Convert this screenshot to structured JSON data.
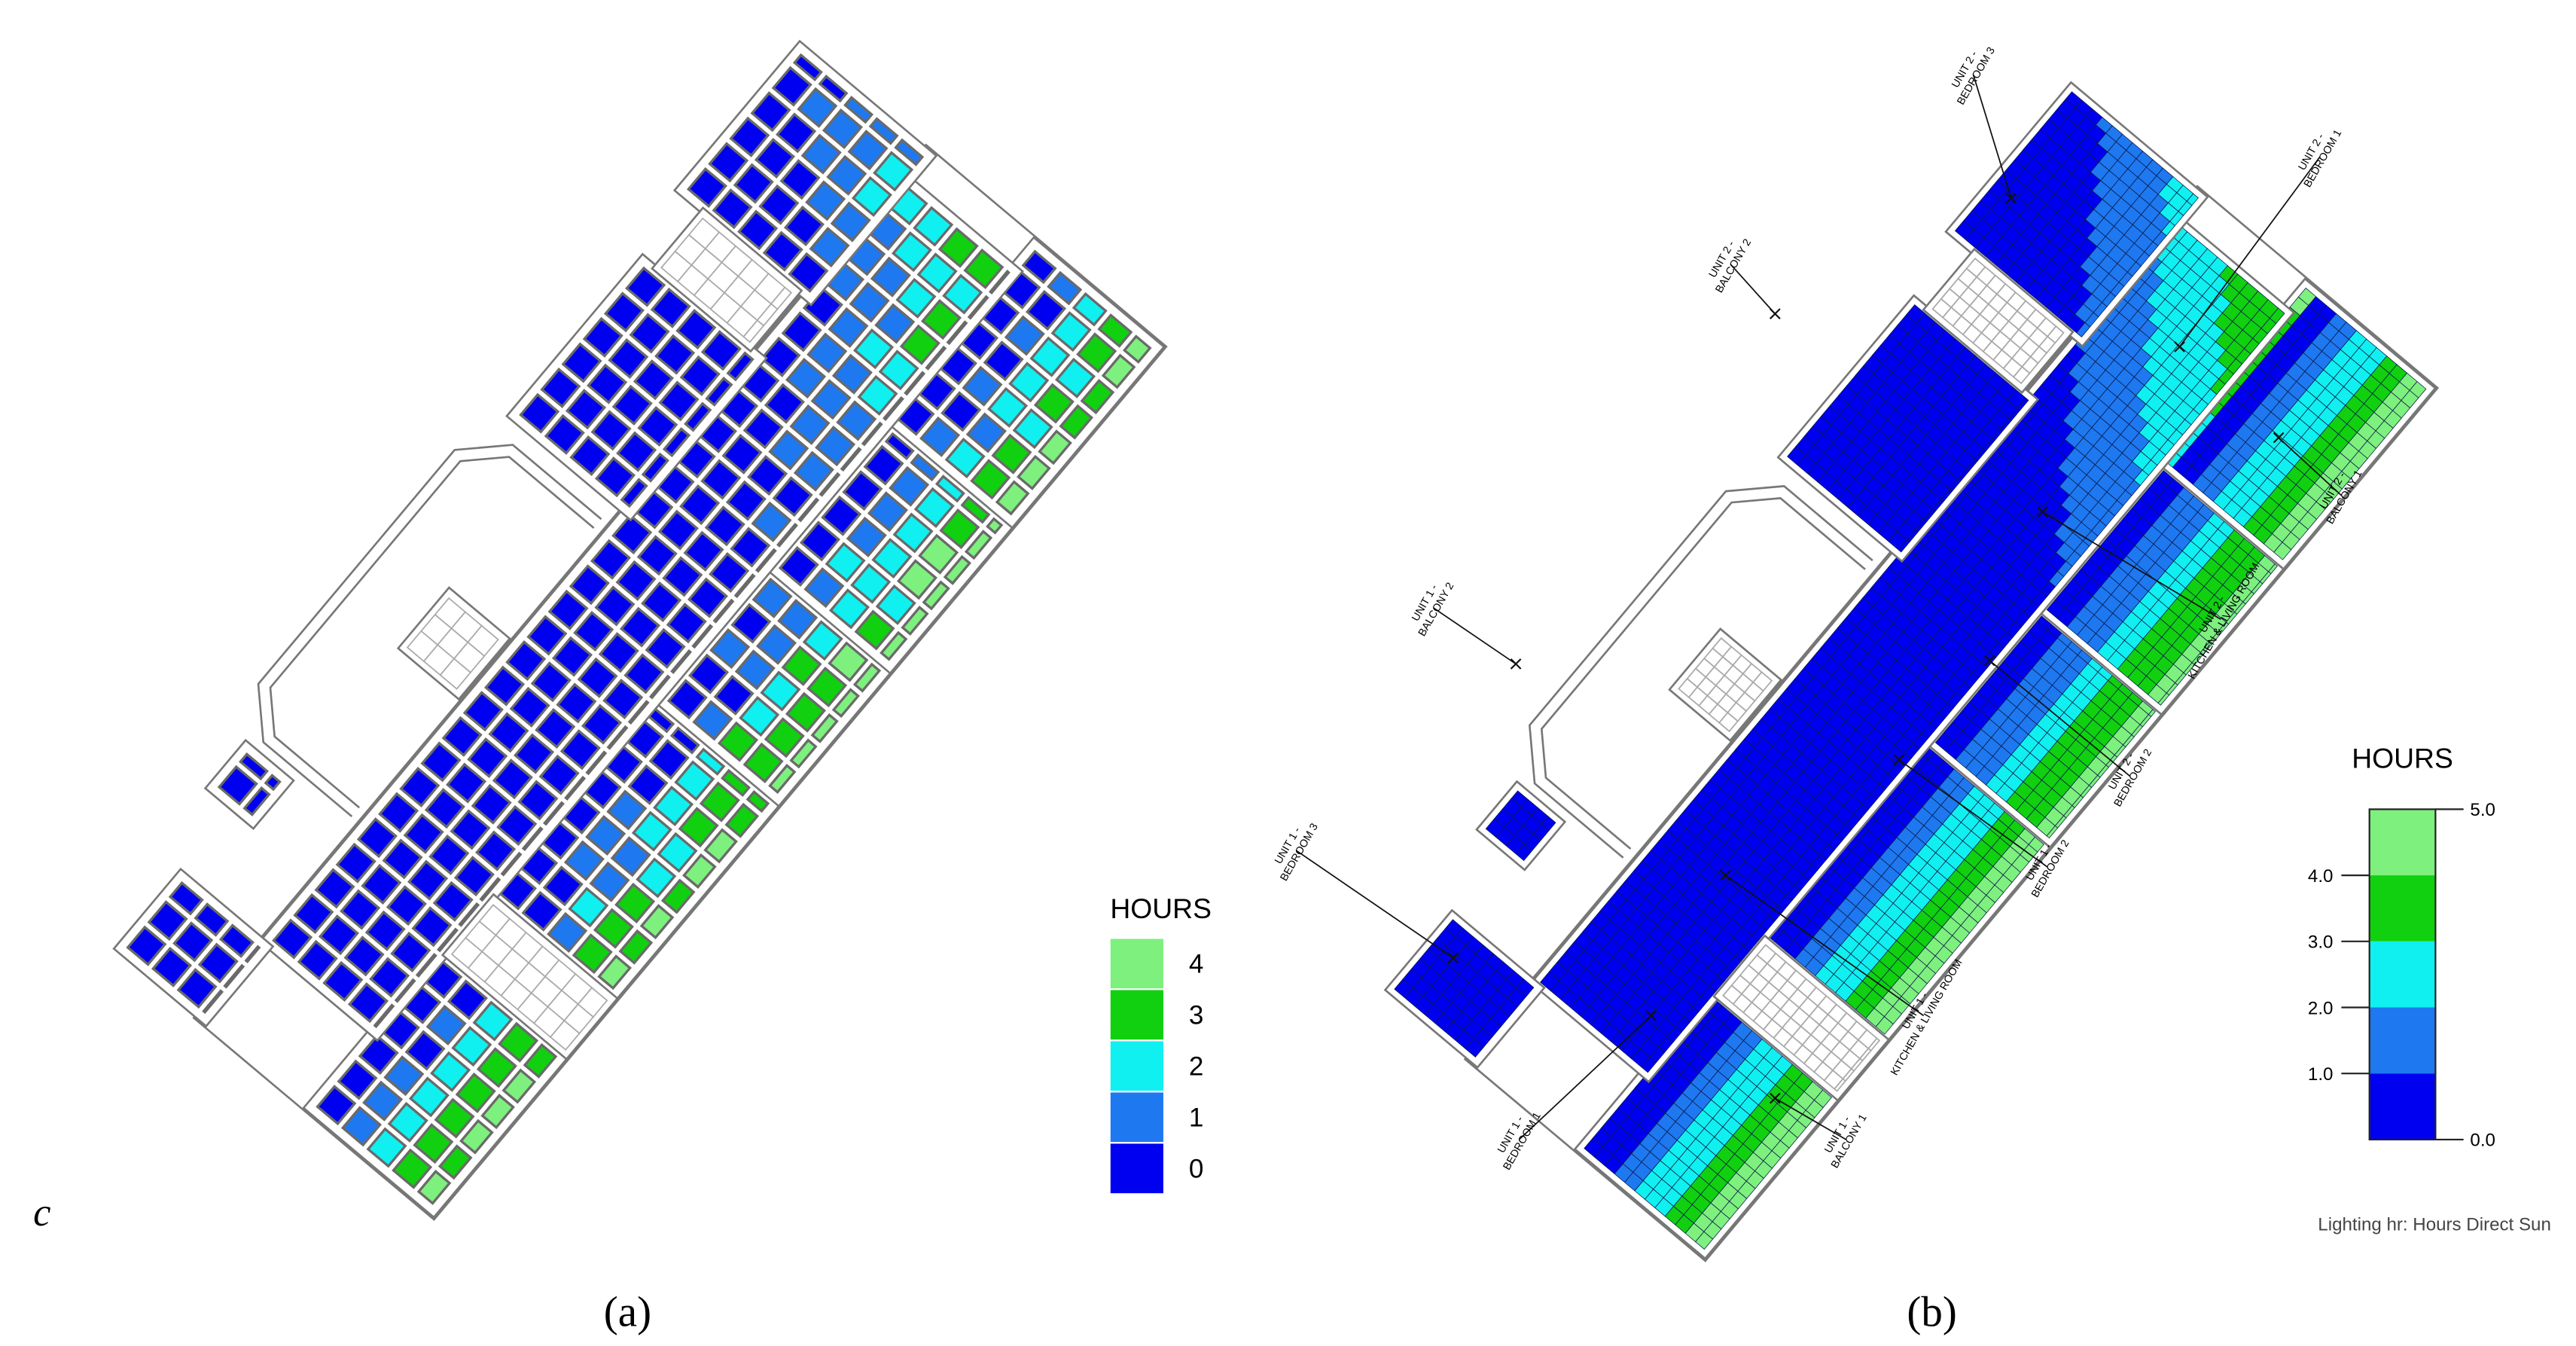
{
  "corner_mark": "c",
  "panels": [
    {
      "label": "(a)",
      "legend": {
        "title": "HOURS",
        "items": [
          {
            "label": "4",
            "color": "#7ef07e"
          },
          {
            "label": "3",
            "color": "#10d010"
          },
          {
            "label": "2",
            "color": "#10f0f0"
          },
          {
            "label": "1",
            "color": "#1e78f0"
          },
          {
            "label": "0",
            "color": "#0000f0"
          }
        ]
      }
    },
    {
      "label": "(b)",
      "legend": {
        "title": "HOURS",
        "colors": [
          "#7ef07e",
          "#10d010",
          "#10f0f0",
          "#1e78f0",
          "#0000f0"
        ],
        "ticks": [
          "5.0",
          "4.0",
          "3.0",
          "2.0",
          "1.0",
          "0.0"
        ]
      },
      "caption": "Lighting hr: Hours Direct Sun",
      "rooms": [
        {
          "unit": "UNIT 2 -",
          "room": "BEDROOM 3"
        },
        {
          "unit": "UNIT 2 -",
          "room": "BALCONY 2"
        },
        {
          "unit": "UNIT 2 -",
          "room": "BEDROOM 1"
        },
        {
          "unit": "UNIT 2 -",
          "room": "BALCONY 1"
        },
        {
          "unit": "UNIT 2 -",
          "room": "KITCHEN & LIVING ROOM"
        },
        {
          "unit": "UNIT 2 -",
          "room": "BEDROOM 2"
        },
        {
          "unit": "UNIT 1 -",
          "room": "BEDROOM 2"
        },
        {
          "unit": "UNIT 1 -",
          "room": "KITCHEN & LIVING ROOM"
        },
        {
          "unit": "UNIT 1 -",
          "room": "BALCONY 1"
        },
        {
          "unit": "UNIT 1 -",
          "room": "BEDROOM 1"
        },
        {
          "unit": "UNIT 1 -",
          "room": "BEDROOM 3"
        },
        {
          "unit": "UNIT 1 -",
          "room": "BALCONY 2"
        }
      ]
    }
  ]
}
